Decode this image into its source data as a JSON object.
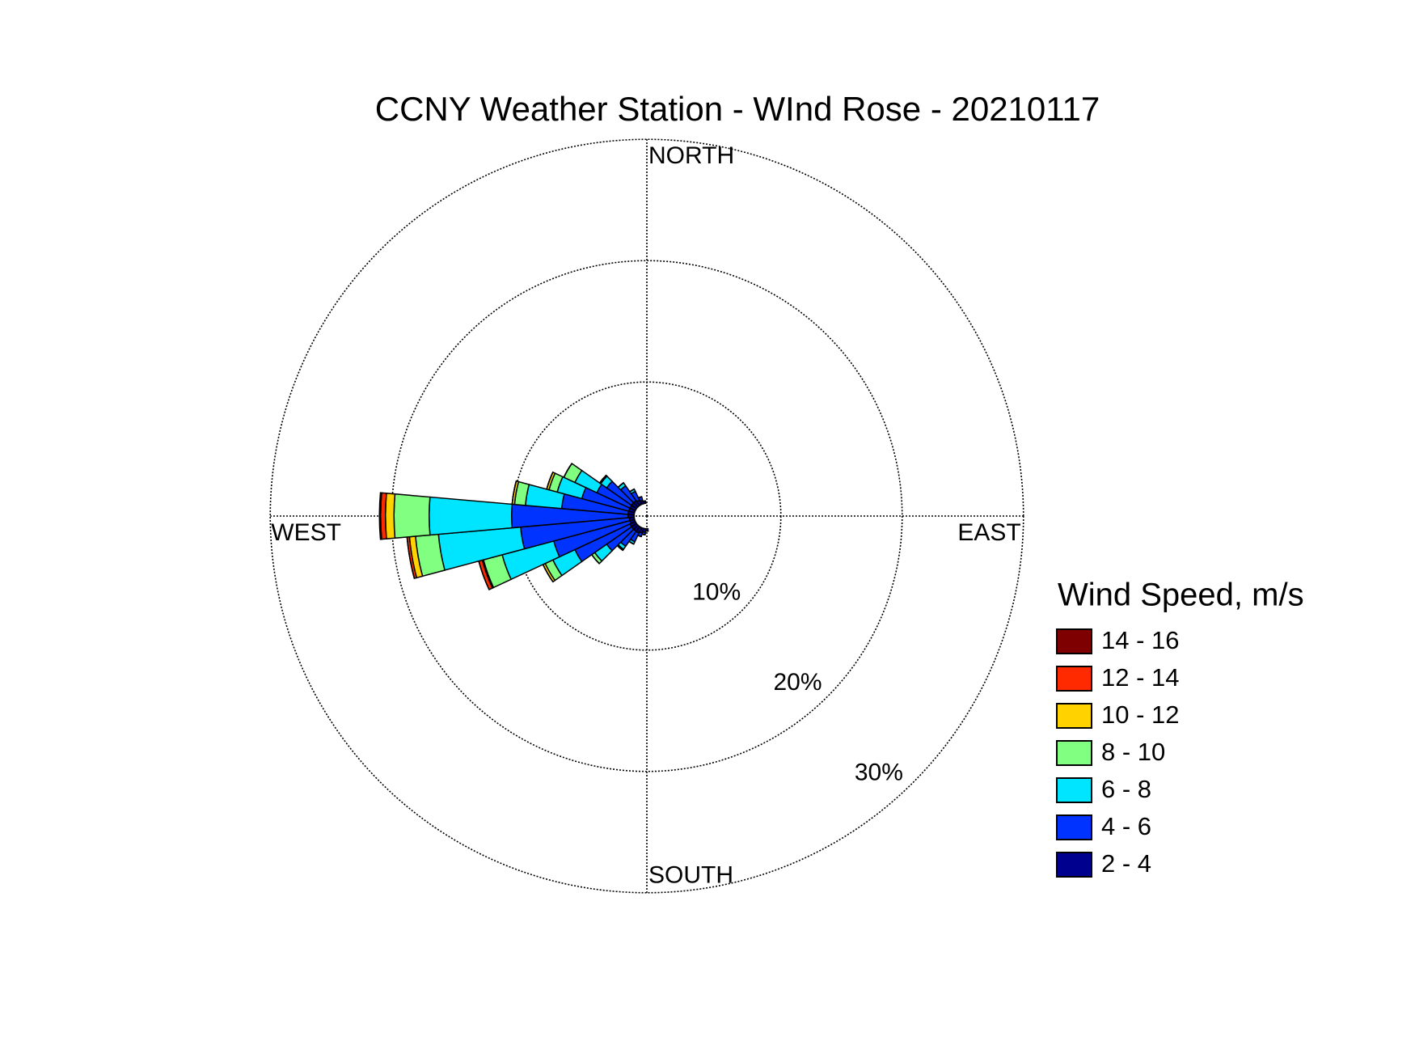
{
  "chart_data": {
    "type": "windrose",
    "title": "CCNY Weather Station - WInd Rose - 20210117",
    "legend_title": "Wind Speed, m/s",
    "legend": "right",
    "grid": true,
    "x": [
      180,
      190,
      200,
      210,
      220,
      230,
      240,
      250,
      260,
      270,
      280,
      290,
      300,
      310,
      320,
      330,
      340,
      350
    ],
    "rlim": [
      0,
      30
    ],
    "rticks": [
      {
        "value": 10,
        "label": "10%"
      },
      {
        "value": 20,
        "label": "20%"
      },
      {
        "value": 30,
        "label": "30%"
      }
    ],
    "angle_labels": [
      {
        "value": 0,
        "label": "NORTH"
      },
      {
        "value": 90,
        "label": "EAST"
      },
      {
        "value": 180,
        "label": "SOUTH"
      },
      {
        "value": 270,
        "label": "WEST"
      }
    ],
    "series": [
      {
        "name": "2 - 4",
        "color": "#00008f",
        "values": [
          0.2,
          0.3,
          0.4,
          0.5,
          0.5,
          0.5,
          0.5,
          0.4,
          0.4,
          0.5,
          0.5,
          0.5,
          0.5,
          0.5,
          0.5,
          0.4,
          0.3,
          0.2
        ]
      },
      {
        "name": "4 - 6",
        "color": "#0033ff",
        "values": [
          0,
          0.2,
          0.3,
          0.8,
          1.5,
          2.5,
          5,
          6.5,
          9,
          9.6,
          5.5,
          4,
          3,
          2.5,
          1.5,
          0.8,
          0.3,
          0
        ]
      },
      {
        "name": "6 - 8",
        "color": "#00e5ff",
        "values": [
          0,
          0,
          0,
          0.2,
          0.3,
          1.2,
          2,
          4.4,
          6.8,
          6.8,
          3,
          2.1,
          2,
          0.6,
          0.3,
          0.2,
          0,
          0
        ]
      },
      {
        "name": "8 - 10",
        "color": "#80ff80",
        "values": [
          0,
          0,
          0,
          0,
          0.1,
          0.3,
          0.7,
          1.6,
          1.9,
          2.9,
          0.9,
          0.7,
          1,
          0.1,
          0,
          0,
          0,
          0
        ]
      },
      {
        "name": "10 - 12",
        "color": "#ffd200",
        "values": [
          0,
          0,
          0,
          0,
          0,
          0,
          0.2,
          0.1,
          0.5,
          0.7,
          0.2,
          0.2,
          0,
          0,
          0,
          0,
          0,
          0
        ]
      },
      {
        "name": "12 - 14",
        "color": "#ff2a00",
        "values": [
          0,
          0,
          0,
          0,
          0,
          0,
          0,
          0.3,
          0.2,
          0.4,
          0,
          0,
          0,
          0,
          0,
          0,
          0,
          0
        ]
      },
      {
        "name": "14 - 16",
        "color": "#7f0000",
        "values": [
          0,
          0,
          0,
          0,
          0,
          0,
          0,
          0,
          0,
          0.1,
          0,
          0,
          0,
          0,
          0,
          0,
          0,
          0
        ]
      }
    ]
  }
}
